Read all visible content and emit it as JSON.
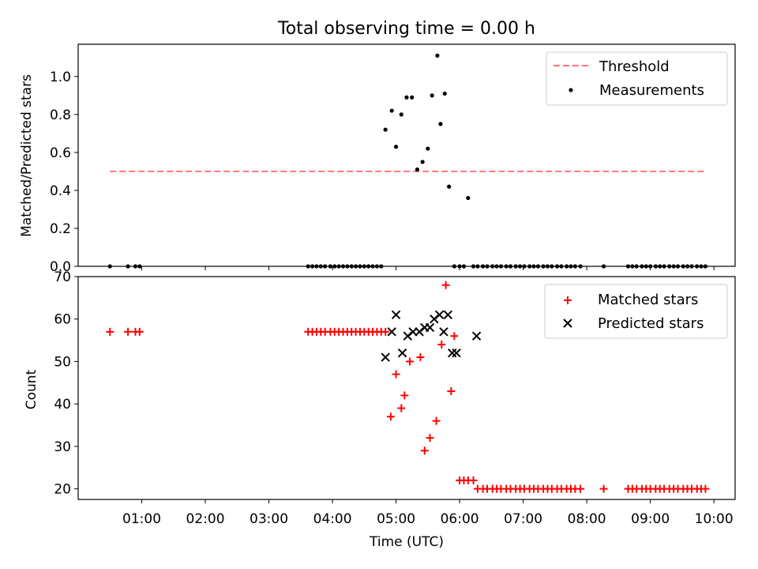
{
  "chart_data": [
    {
      "type": "scatter",
      "title": "Total observing time = 0.00 h",
      "ylabel": "Matched/Predicted stars",
      "ylim": [
        0,
        1.17
      ],
      "yticks": [
        "0.0",
        "0.2",
        "0.4",
        "0.6",
        "0.8",
        "1.0"
      ],
      "legend_position": "top-right",
      "threshold": {
        "name": "Threshold",
        "value": 0.5,
        "x_start": "00:30",
        "x_end": "09:53",
        "color": "#ff7777",
        "style": "dashed"
      },
      "series": [
        {
          "name": "Measurements",
          "color": "#000000",
          "marker": "dot",
          "x": [
            "00:30",
            "00:47",
            "00:54",
            "00:58",
            "03:37",
            "03:41",
            "03:45",
            "03:49",
            "03:53",
            "03:58",
            "04:02",
            "04:06",
            "04:10",
            "04:14",
            "04:18",
            "04:22",
            "04:26",
            "04:30",
            "04:34",
            "04:38",
            "04:42",
            "04:46",
            "04:50",
            "04:56",
            "05:00",
            "05:05",
            "05:10",
            "05:15",
            "05:20",
            "05:25",
            "05:30",
            "05:34",
            "05:39",
            "05:42",
            "05:46",
            "05:50",
            "05:55",
            "06:00",
            "06:04",
            "06:08",
            "06:13",
            "06:17",
            "06:22",
            "06:26",
            "06:31",
            "06:35",
            "06:39",
            "06:44",
            "06:48",
            "06:53",
            "06:57",
            "07:01",
            "07:06",
            "07:10",
            "07:14",
            "07:19",
            "07:23",
            "07:27",
            "07:32",
            "07:36",
            "07:41",
            "07:45",
            "07:49",
            "07:54",
            "08:16",
            "08:39",
            "08:43",
            "08:47",
            "08:52",
            "08:56",
            "09:00",
            "09:05",
            "09:09",
            "09:13",
            "09:18",
            "09:22",
            "09:26",
            "09:31",
            "09:35",
            "09:39",
            "09:44",
            "09:48",
            "09:52"
          ],
          "y": [
            0,
            0,
            0,
            0,
            0,
            0,
            0,
            0,
            0,
            0,
            0,
            0,
            0,
            0,
            0,
            0,
            0,
            0,
            0,
            0,
            0,
            0,
            0.72,
            0.82,
            0.63,
            0.8,
            0.89,
            0.89,
            0.51,
            0.55,
            0.62,
            0.9,
            1.11,
            0.75,
            0.91,
            0.42,
            0,
            0,
            0,
            0.36,
            0,
            0,
            0,
            0,
            0,
            0,
            0,
            0,
            0,
            0,
            0,
            0,
            0,
            0,
            0,
            0,
            0,
            0,
            0,
            0,
            0,
            0,
            0,
            0,
            0,
            0,
            0,
            0,
            0,
            0,
            0,
            0,
            0,
            0,
            0,
            0,
            0,
            0,
            0,
            0,
            0,
            0,
            0
          ]
        }
      ]
    },
    {
      "type": "scatter",
      "xlabel": "Time (UTC)",
      "ylabel": "Count",
      "xlim": [
        "00:00",
        "10:20"
      ],
      "xticks": [
        "01:00",
        "02:00",
        "03:00",
        "04:00",
        "05:00",
        "06:00",
        "07:00",
        "08:00",
        "09:00",
        "10:00"
      ],
      "ylim": [
        17.5,
        70
      ],
      "yticks": [
        "20",
        "30",
        "40",
        "50",
        "60",
        "70"
      ],
      "legend_position": "top-right",
      "series": [
        {
          "name": "Matched stars",
          "color": "#ff0000",
          "marker": "plus",
          "x": [
            "00:30",
            "00:47",
            "00:54",
            "00:58",
            "03:37",
            "03:41",
            "03:45",
            "03:49",
            "03:53",
            "03:58",
            "04:02",
            "04:06",
            "04:10",
            "04:14",
            "04:18",
            "04:22",
            "04:26",
            "04:30",
            "04:34",
            "04:38",
            "04:42",
            "04:46",
            "04:50",
            "04:55",
            "05:00",
            "05:05",
            "05:08",
            "05:13",
            "05:23",
            "05:27",
            "05:32",
            "05:38",
            "05:43",
            "05:47",
            "05:52",
            "05:55",
            "06:00",
            "06:04",
            "06:08",
            "06:13",
            "06:17",
            "06:22",
            "06:26",
            "06:31",
            "06:35",
            "06:39",
            "06:44",
            "06:48",
            "06:53",
            "06:57",
            "07:01",
            "07:06",
            "07:10",
            "07:14",
            "07:19",
            "07:23",
            "07:27",
            "07:32",
            "07:36",
            "07:41",
            "07:45",
            "07:49",
            "07:54",
            "08:16",
            "08:39",
            "08:43",
            "08:47",
            "08:52",
            "08:56",
            "09:00",
            "09:05",
            "09:09",
            "09:13",
            "09:18",
            "09:22",
            "09:26",
            "09:31",
            "09:35",
            "09:39",
            "09:44",
            "09:48",
            "09:52"
          ],
          "y": [
            57,
            57,
            57,
            57,
            57,
            57,
            57,
            57,
            57,
            57,
            57,
            57,
            57,
            57,
            57,
            57,
            57,
            57,
            57,
            57,
            57,
            57,
            57,
            37,
            47,
            39,
            42,
            50,
            51,
            29,
            32,
            36,
            54,
            68,
            43,
            56,
            22,
            22,
            22,
            22,
            20,
            20,
            20,
            20,
            20,
            20,
            20,
            20,
            20,
            20,
            20,
            20,
            20,
            20,
            20,
            20,
            20,
            20,
            20,
            20,
            20,
            20,
            20,
            20,
            20,
            20,
            20,
            20,
            20,
            20,
            20,
            20,
            20,
            20,
            20,
            20,
            20,
            20,
            20,
            20,
            20,
            20
          ]
        },
        {
          "name": "Predicted stars",
          "color": "#000000",
          "marker": "x",
          "x": [
            "04:50",
            "04:56",
            "05:00",
            "05:06",
            "05:11",
            "05:16",
            "05:22",
            "05:27",
            "05:32",
            "05:36",
            "05:41",
            "05:45",
            "05:49",
            "05:53",
            "05:57",
            "06:16"
          ],
          "y": [
            51,
            57,
            61,
            52,
            56,
            57,
            57,
            58,
            58,
            60,
            61,
            57,
            61,
            52,
            52,
            56
          ]
        }
      ]
    }
  ]
}
